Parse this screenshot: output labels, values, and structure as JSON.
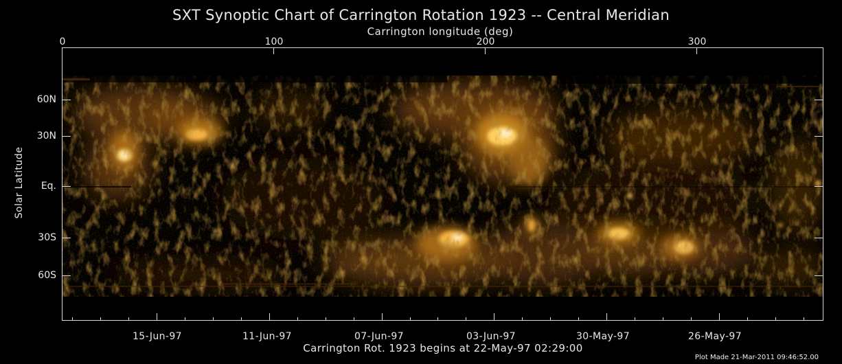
{
  "title": "SXT Synoptic Chart of Carrington Rotation 1923 -- Central Meridian",
  "top_axis": {
    "label": "Carrington longitude (deg)",
    "ticks": [
      {
        "value": 0,
        "label": "0"
      },
      {
        "value": 100,
        "label": "100"
      },
      {
        "value": 200,
        "label": "200"
      },
      {
        "value": 300,
        "label": "300"
      }
    ],
    "range": [
      0,
      360
    ]
  },
  "left_axis": {
    "label": "Solar Latitude",
    "ticks": [
      {
        "value": 60,
        "label": "60N"
      },
      {
        "value": 30,
        "label": "30N"
      },
      {
        "value": 0,
        "label": "Eq."
      },
      {
        "value": -30,
        "label": "30S"
      },
      {
        "value": -60,
        "label": "60S"
      }
    ]
  },
  "bottom_axis": {
    "label": "Carrington Rot. 1923 begins at 22-May-97 02:29:00",
    "dates": [
      {
        "lon": 44.4,
        "label": "15-Jun-97"
      },
      {
        "lon": 97.6,
        "label": "11-Jun-97"
      },
      {
        "lon": 150.9,
        "label": "07-Jun-97"
      },
      {
        "lon": 204.0,
        "label": "03-Jun-97"
      },
      {
        "lon": 257.3,
        "label": "30-May-97"
      },
      {
        "lon": 310.5,
        "label": "26-May-97"
      }
    ]
  },
  "footer": "Plot Made 21-Mar-2011 09:46:52.00",
  "colors": {
    "background": "#000000",
    "emission_dim": "#3a2006",
    "emission_mid": "#b07018",
    "emission_bright": "#ffe9a8",
    "axis": "#dcdcdc"
  }
}
